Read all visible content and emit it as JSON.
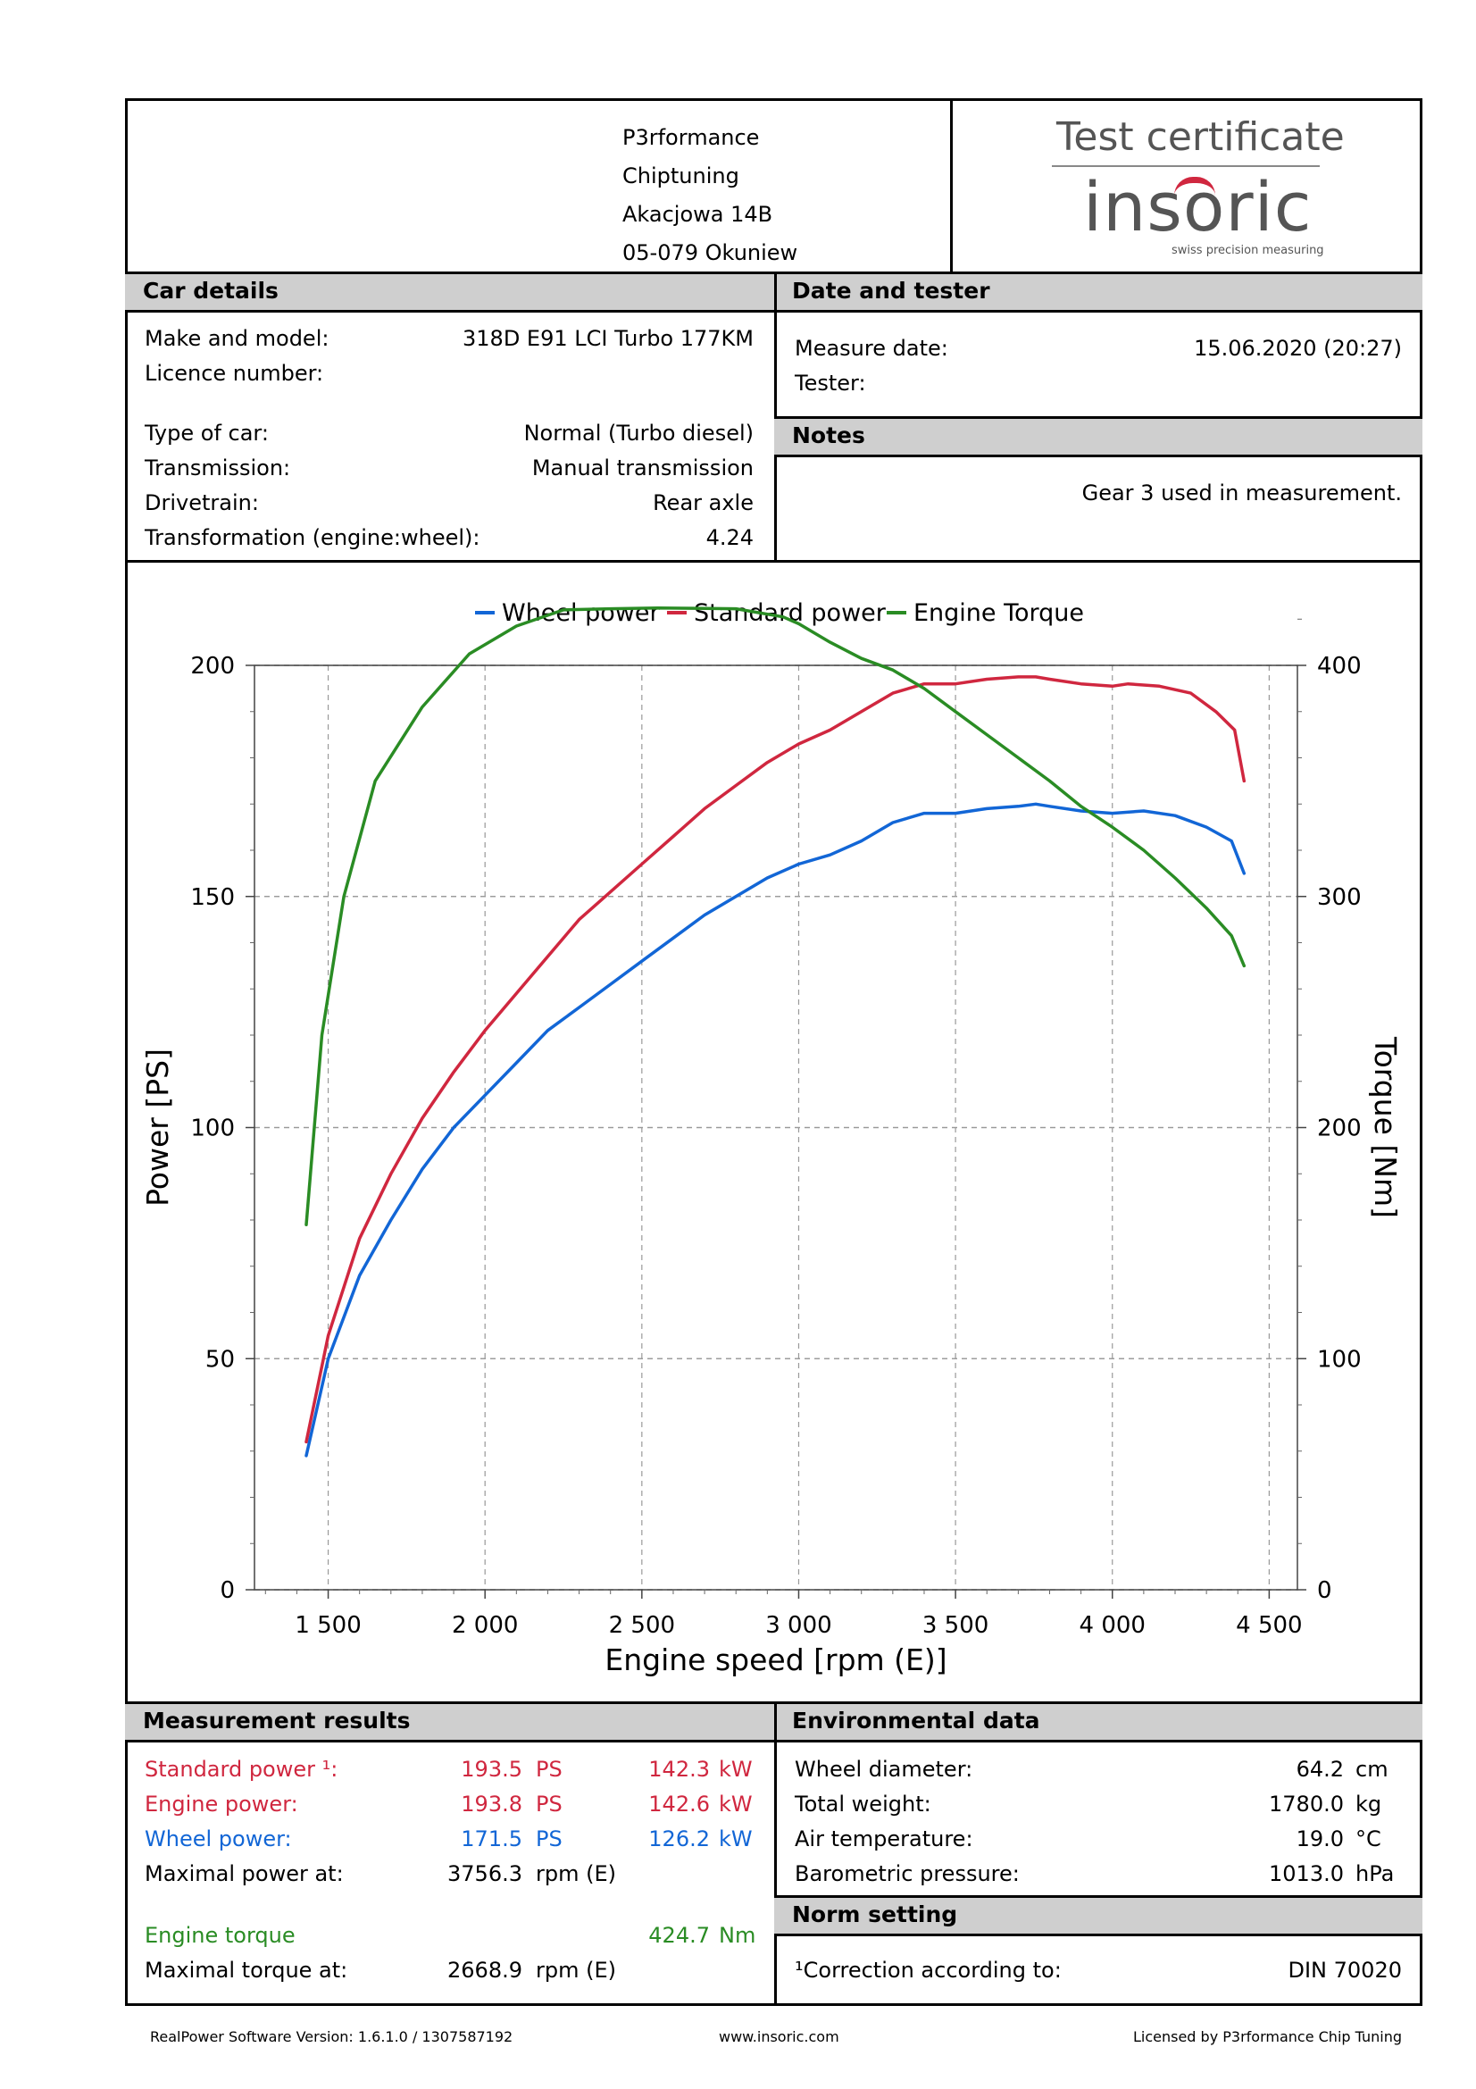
{
  "company": {
    "name": "P3rformance",
    "line2": "Chiptuning",
    "street": "Akacjowa 14B",
    "city": "05-079 Okuniew"
  },
  "certificate": {
    "title": "Test certificate",
    "logo_text": "insoric",
    "logo_tagline": "swiss precision measuring"
  },
  "car_details": {
    "header": "Car details",
    "rows": [
      {
        "label": "Make and model:",
        "value": "318D E91 LCI Turbo 177KM"
      },
      {
        "label": "Licence number:",
        "value": ""
      },
      {
        "label": "Type of car:",
        "value": "Normal (Turbo diesel)"
      },
      {
        "label": "Transmission:",
        "value": "Manual transmission"
      },
      {
        "label": "Drivetrain:",
        "value": "Rear axle"
      },
      {
        "label": "Transformation (engine:wheel):",
        "value": "4.24"
      }
    ]
  },
  "date_tester": {
    "header": "Date and tester",
    "measure_date_label": "Measure date:",
    "measure_date_value": "15.06.2020 (20:27)",
    "tester_label": "Tester:"
  },
  "notes": {
    "header": "Notes",
    "text": "Gear 3 used in measurement."
  },
  "chart_data": {
    "type": "line",
    "legend": [
      "Wheel power",
      "Standard power",
      "Engine Torque"
    ],
    "legend_placement": "top-center",
    "xlabel": "Engine speed [rpm (E)]",
    "ylabel": "Power [PS]",
    "y2label": "Torque [Nm]",
    "xlim": [
      1265,
      4590
    ],
    "ylim": [
      0,
      200
    ],
    "y2lim": [
      0,
      400
    ],
    "xticks": [
      1500,
      2000,
      2500,
      3000,
      3500,
      4000,
      4500
    ],
    "xtick_labels": [
      "1 500",
      "2 000",
      "2 500",
      "3 000",
      "3 500",
      "4 000",
      "4 500"
    ],
    "yticks": [
      0,
      50,
      100,
      150,
      200
    ],
    "y2ticks": [
      0,
      100,
      200,
      300,
      400
    ],
    "grid": true,
    "colors": {
      "wheel": "#1266d6",
      "standard": "#d0273f",
      "torque": "#2a8c24"
    },
    "series": [
      {
        "name": "Wheel power",
        "axis": "left",
        "color": "#1266d6",
        "points": [
          [
            1430,
            29
          ],
          [
            1500,
            50
          ],
          [
            1600,
            68
          ],
          [
            1700,
            80
          ],
          [
            1800,
            91
          ],
          [
            1900,
            100
          ],
          [
            2000,
            107
          ],
          [
            2100,
            114
          ],
          [
            2200,
            121
          ],
          [
            2300,
            126
          ],
          [
            2400,
            131
          ],
          [
            2500,
            136
          ],
          [
            2600,
            141
          ],
          [
            2700,
            146
          ],
          [
            2800,
            150
          ],
          [
            2900,
            154
          ],
          [
            3000,
            157
          ],
          [
            3100,
            159
          ],
          [
            3200,
            162
          ],
          [
            3300,
            166
          ],
          [
            3400,
            168
          ],
          [
            3500,
            168
          ],
          [
            3600,
            169
          ],
          [
            3700,
            169.5
          ],
          [
            3756,
            170
          ],
          [
            3800,
            169.5
          ],
          [
            3900,
            168.5
          ],
          [
            4000,
            168
          ],
          [
            4100,
            168.5
          ],
          [
            4200,
            167.5
          ],
          [
            4300,
            165
          ],
          [
            4380,
            162
          ],
          [
            4420,
            155
          ]
        ]
      },
      {
        "name": "Standard power",
        "axis": "left",
        "color": "#d0273f",
        "points": [
          [
            1430,
            32
          ],
          [
            1500,
            55
          ],
          [
            1600,
            76
          ],
          [
            1700,
            90
          ],
          [
            1800,
            102
          ],
          [
            1900,
            112
          ],
          [
            2000,
            121
          ],
          [
            2100,
            129
          ],
          [
            2200,
            137
          ],
          [
            2300,
            145
          ],
          [
            2400,
            151
          ],
          [
            2500,
            157
          ],
          [
            2600,
            163
          ],
          [
            2700,
            169
          ],
          [
            2800,
            174
          ],
          [
            2900,
            179
          ],
          [
            3000,
            183
          ],
          [
            3100,
            186
          ],
          [
            3200,
            190
          ],
          [
            3300,
            194
          ],
          [
            3400,
            196
          ],
          [
            3500,
            196
          ],
          [
            3600,
            197
          ],
          [
            3700,
            197.5
          ],
          [
            3756,
            197.5
          ],
          [
            3800,
            197
          ],
          [
            3900,
            196
          ],
          [
            4000,
            195.5
          ],
          [
            4050,
            196
          ],
          [
            4150,
            195.5
          ],
          [
            4250,
            194
          ],
          [
            4330,
            190
          ],
          [
            4390,
            186
          ],
          [
            4420,
            175
          ]
        ]
      },
      {
        "name": "Engine Torque",
        "axis": "right",
        "color": "#2a8c24",
        "points": [
          [
            1430,
            158
          ],
          [
            1480,
            240
          ],
          [
            1550,
            300
          ],
          [
            1650,
            350
          ],
          [
            1800,
            382
          ],
          [
            1950,
            405
          ],
          [
            2100,
            417
          ],
          [
            2250,
            424
          ],
          [
            2400,
            424.5
          ],
          [
            2550,
            424.8
          ],
          [
            2669,
            424.7
          ],
          [
            2800,
            424.5
          ],
          [
            2950,
            421
          ],
          [
            3000,
            418
          ],
          [
            3100,
            410
          ],
          [
            3200,
            403
          ],
          [
            3300,
            398
          ],
          [
            3400,
            390
          ],
          [
            3500,
            380
          ],
          [
            3600,
            370
          ],
          [
            3700,
            360
          ],
          [
            3800,
            350
          ],
          [
            3900,
            339
          ],
          [
            4000,
            330
          ],
          [
            4100,
            320
          ],
          [
            4200,
            308
          ],
          [
            4300,
            295
          ],
          [
            4380,
            283
          ],
          [
            4420,
            270
          ]
        ]
      }
    ]
  },
  "measurement": {
    "header": "Measurement results",
    "standard": {
      "label": "Standard power ¹:",
      "ps": "193.5",
      "kw": "142.3"
    },
    "engine": {
      "label": "Engine power:",
      "ps": "193.8",
      "kw": "142.6"
    },
    "wheel": {
      "label": "Wheel power:",
      "ps": "171.5",
      "kw": "126.2"
    },
    "unit_ps": "PS",
    "unit_kw": "kW",
    "max_power_label": "Maximal power at:",
    "max_power_rpm": "3756.3",
    "rpm_unit": "rpm (E)",
    "torque_label": "Engine torque",
    "torque_value": "424.7",
    "torque_unit": "Nm",
    "max_torque_label": "Maximal torque at:",
    "max_torque_rpm": "2668.9"
  },
  "environment": {
    "header": "Environmental data",
    "rows": [
      {
        "label": "Wheel diameter:",
        "value": "64.2",
        "unit": "cm"
      },
      {
        "label": "Total weight:",
        "value": "1780.0",
        "unit": "kg"
      },
      {
        "label": "Air temperature:",
        "value": "19.0",
        "unit": "°C"
      },
      {
        "label": "Barometric pressure:",
        "value": "1013.0",
        "unit": "hPa"
      }
    ]
  },
  "norm": {
    "header": "Norm setting",
    "label": "¹Correction according to:",
    "value": "DIN 70020"
  },
  "footer": {
    "software": "RealPower Software Version: 1.6.1.0 / 1307587192",
    "website": "www.insoric.com",
    "license": "Licensed by P3rformance Chip Tuning"
  }
}
